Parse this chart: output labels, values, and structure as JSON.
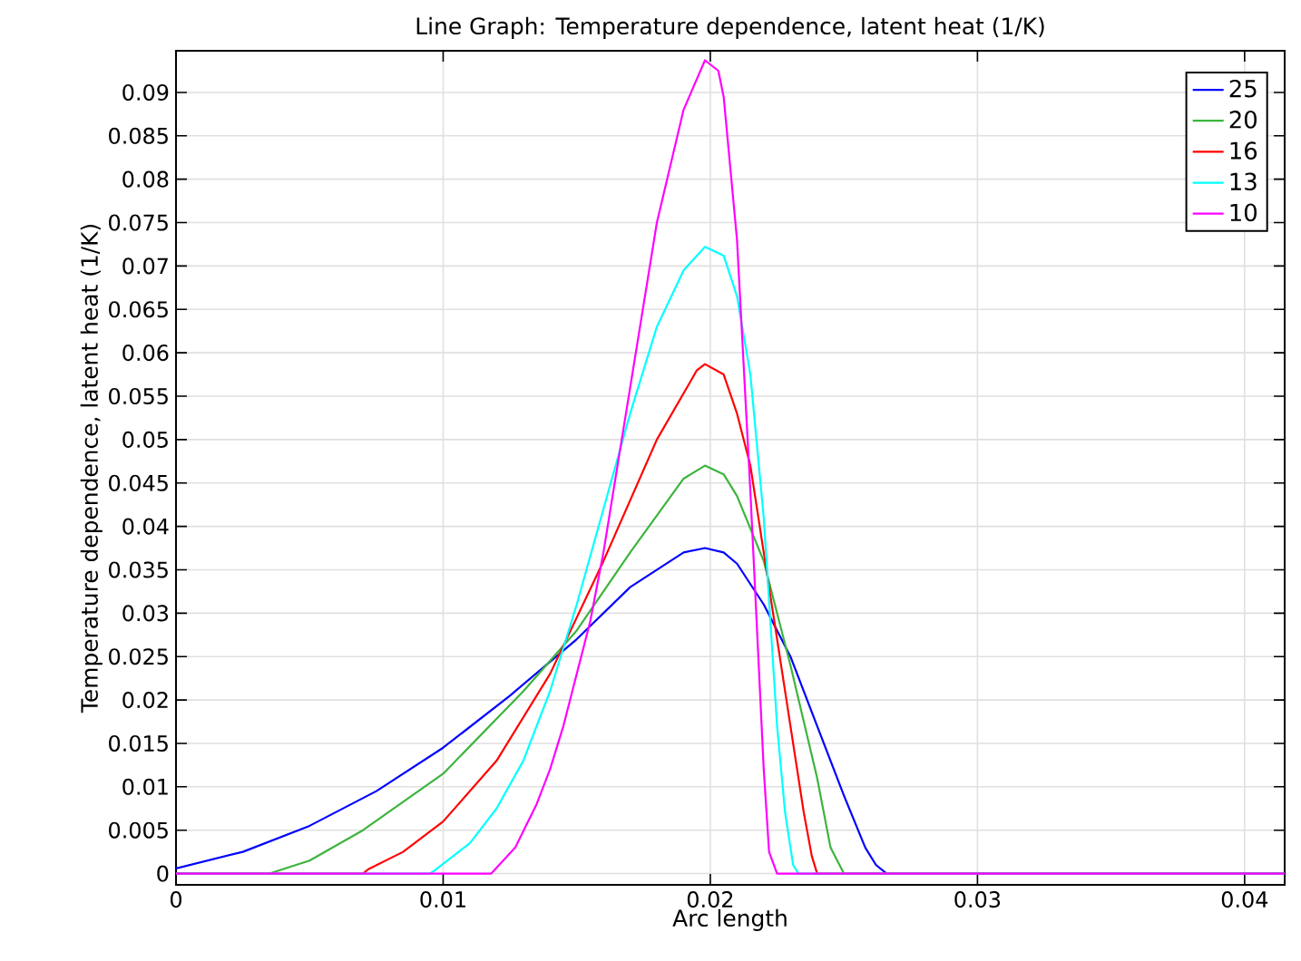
{
  "chart_data": {
    "type": "line",
    "title": "Line Graph: Temperature dependence, latent heat (1/K)",
    "xlabel": "Arc length",
    "ylabel": "Temperature dependence, latent heat (1/K)",
    "xlim": [
      0,
      0.0415
    ],
    "ylim": [
      -0.0013,
      0.0948
    ],
    "xticks": [
      0,
      0.01,
      0.02,
      0.03,
      0.04
    ],
    "yticks": [
      0,
      0.005,
      0.01,
      0.015,
      0.02,
      0.025,
      0.03,
      0.035,
      0.04,
      0.045,
      0.05,
      0.055,
      0.06,
      0.065,
      0.07,
      0.075,
      0.08,
      0.085,
      0.09
    ],
    "grid": true,
    "legend": "top right",
    "marker": "none",
    "line_style": "solid",
    "series": [
      {
        "name": "25",
        "color": "#0000ff",
        "x": [
          0,
          0.0025,
          0.005,
          0.0075,
          0.01,
          0.0125,
          0.015,
          0.017,
          0.019,
          0.0198,
          0.0205,
          0.021,
          0.022,
          0.023,
          0.024,
          0.025,
          0.0258,
          0.0262,
          0.0266,
          0.0415
        ],
        "values": [
          0.0006,
          0.0025,
          0.0055,
          0.0095,
          0.0145,
          0.0205,
          0.027,
          0.033,
          0.037,
          0.0375,
          0.037,
          0.0357,
          0.031,
          0.025,
          0.017,
          0.009,
          0.003,
          0.001,
          0,
          0
        ]
      },
      {
        "name": "20",
        "color": "#3cb43c",
        "x": [
          0,
          0.0035,
          0.005,
          0.007,
          0.01,
          0.013,
          0.015,
          0.017,
          0.019,
          0.0198,
          0.0205,
          0.021,
          0.022,
          0.023,
          0.024,
          0.0245,
          0.025,
          0.0415
        ],
        "values": [
          0,
          0,
          0.0015,
          0.005,
          0.0115,
          0.021,
          0.028,
          0.037,
          0.0455,
          0.047,
          0.046,
          0.0435,
          0.036,
          0.024,
          0.011,
          0.003,
          0,
          0
        ]
      },
      {
        "name": "16",
        "color": "#ff0000",
        "x": [
          0,
          0.007,
          0.0072,
          0.0085,
          0.01,
          0.012,
          0.014,
          0.016,
          0.018,
          0.0195,
          0.0198,
          0.0205,
          0.021,
          0.0215,
          0.022,
          0.023,
          0.0235,
          0.0238,
          0.024,
          0.0415
        ],
        "values": [
          0,
          0,
          0.0005,
          0.0025,
          0.006,
          0.013,
          0.023,
          0.036,
          0.05,
          0.058,
          0.0587,
          0.0575,
          0.053,
          0.047,
          0.037,
          0.017,
          0.007,
          0.002,
          0,
          0
        ]
      },
      {
        "name": "13",
        "color": "#00ffff",
        "x": [
          0,
          0.0095,
          0.0097,
          0.011,
          0.012,
          0.013,
          0.014,
          0.015,
          0.016,
          0.017,
          0.018,
          0.019,
          0.0198,
          0.0205,
          0.021,
          0.0215,
          0.022,
          0.0225,
          0.0228,
          0.0231,
          0.0233,
          0.0415
        ],
        "values": [
          0,
          0,
          0.0004,
          0.0035,
          0.0075,
          0.013,
          0.021,
          0.031,
          0.042,
          0.053,
          0.063,
          0.0695,
          0.0722,
          0.0712,
          0.0665,
          0.0575,
          0.041,
          0.017,
          0.007,
          0.001,
          0,
          0
        ]
      },
      {
        "name": "10",
        "color": "#ff00ff",
        "x": [
          0,
          0.0118,
          0.0127,
          0.0135,
          0.014,
          0.0145,
          0.015,
          0.0155,
          0.016,
          0.017,
          0.018,
          0.019,
          0.0198,
          0.0203,
          0.0205,
          0.021,
          0.0215,
          0.022,
          0.0222,
          0.0225,
          0.0415
        ],
        "values": [
          0,
          0,
          0.003,
          0.008,
          0.012,
          0.017,
          0.023,
          0.029,
          0.037,
          0.056,
          0.075,
          0.088,
          0.0937,
          0.0925,
          0.0895,
          0.073,
          0.044,
          0.012,
          0.0025,
          0,
          0
        ]
      }
    ]
  }
}
